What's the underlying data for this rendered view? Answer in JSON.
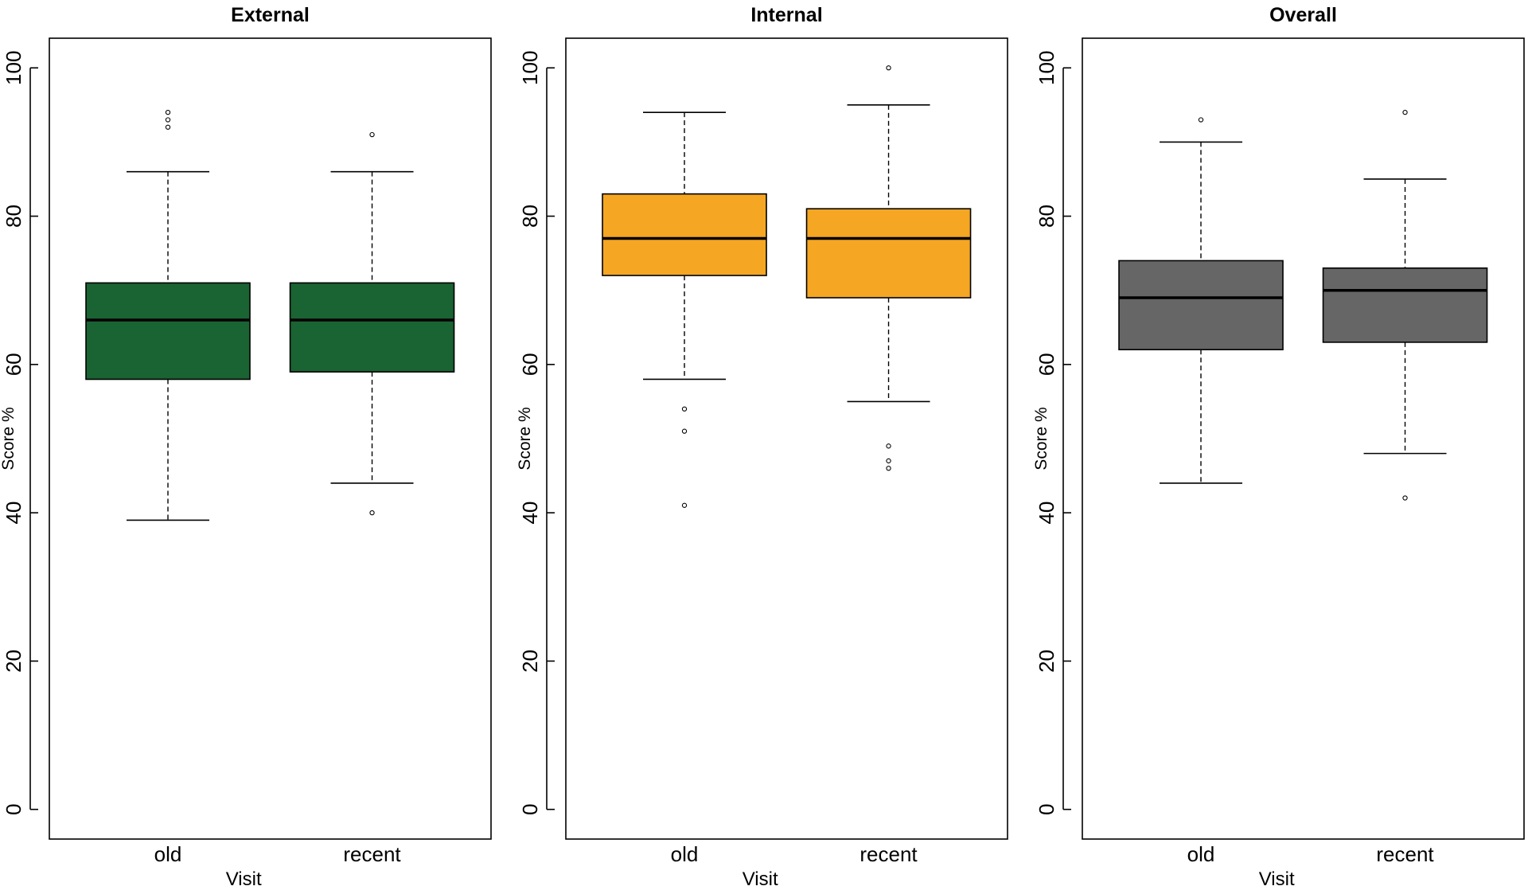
{
  "chart_data": [
    {
      "type": "box",
      "title": "External",
      "xlabel": "Visit",
      "ylabel": "Score %",
      "ylim": [
        -4,
        104
      ],
      "yticks": [
        "0",
        "20",
        "40",
        "60",
        "80",
        "100"
      ],
      "categories": [
        "old",
        "recent"
      ],
      "color": "#1a6333",
      "boxes": [
        {
          "whisker_low": 39,
          "q1": 58,
          "median": 66,
          "q3": 71,
          "whisker_high": 86,
          "outliers": [
            92,
            93,
            94
          ]
        },
        {
          "whisker_low": 44,
          "q1": 59,
          "median": 66,
          "q3": 71,
          "whisker_high": 86,
          "outliers": [
            40,
            91
          ]
        }
      ]
    },
    {
      "type": "box",
      "title": "Internal",
      "xlabel": "Visit",
      "ylabel": "Score %",
      "ylim": [
        -4,
        104
      ],
      "yticks": [
        "0",
        "20",
        "40",
        "60",
        "80",
        "100"
      ],
      "categories": [
        "old",
        "recent"
      ],
      "color": "#f5a623",
      "boxes": [
        {
          "whisker_low": 58,
          "q1": 72,
          "median": 77,
          "q3": 83,
          "whisker_high": 94,
          "outliers": [
            41,
            51,
            54
          ]
        },
        {
          "whisker_low": 55,
          "q1": 69,
          "median": 77,
          "q3": 81,
          "whisker_high": 95,
          "outliers": [
            46,
            47,
            49,
            100
          ]
        }
      ]
    },
    {
      "type": "box",
      "title": "Overall",
      "xlabel": "Visit",
      "ylabel": "Score %",
      "ylim": [
        -4,
        104
      ],
      "yticks": [
        "0",
        "20",
        "40",
        "60",
        "80",
        "100"
      ],
      "categories": [
        "old",
        "recent"
      ],
      "color": "#666666",
      "boxes": [
        {
          "whisker_low": 44,
          "q1": 62,
          "median": 69,
          "q3": 74,
          "whisker_high": 90,
          "outliers": [
            93
          ]
        },
        {
          "whisker_low": 48,
          "q1": 63,
          "median": 70,
          "q3": 73,
          "whisker_high": 85,
          "outliers": [
            42,
            94
          ]
        }
      ]
    }
  ]
}
